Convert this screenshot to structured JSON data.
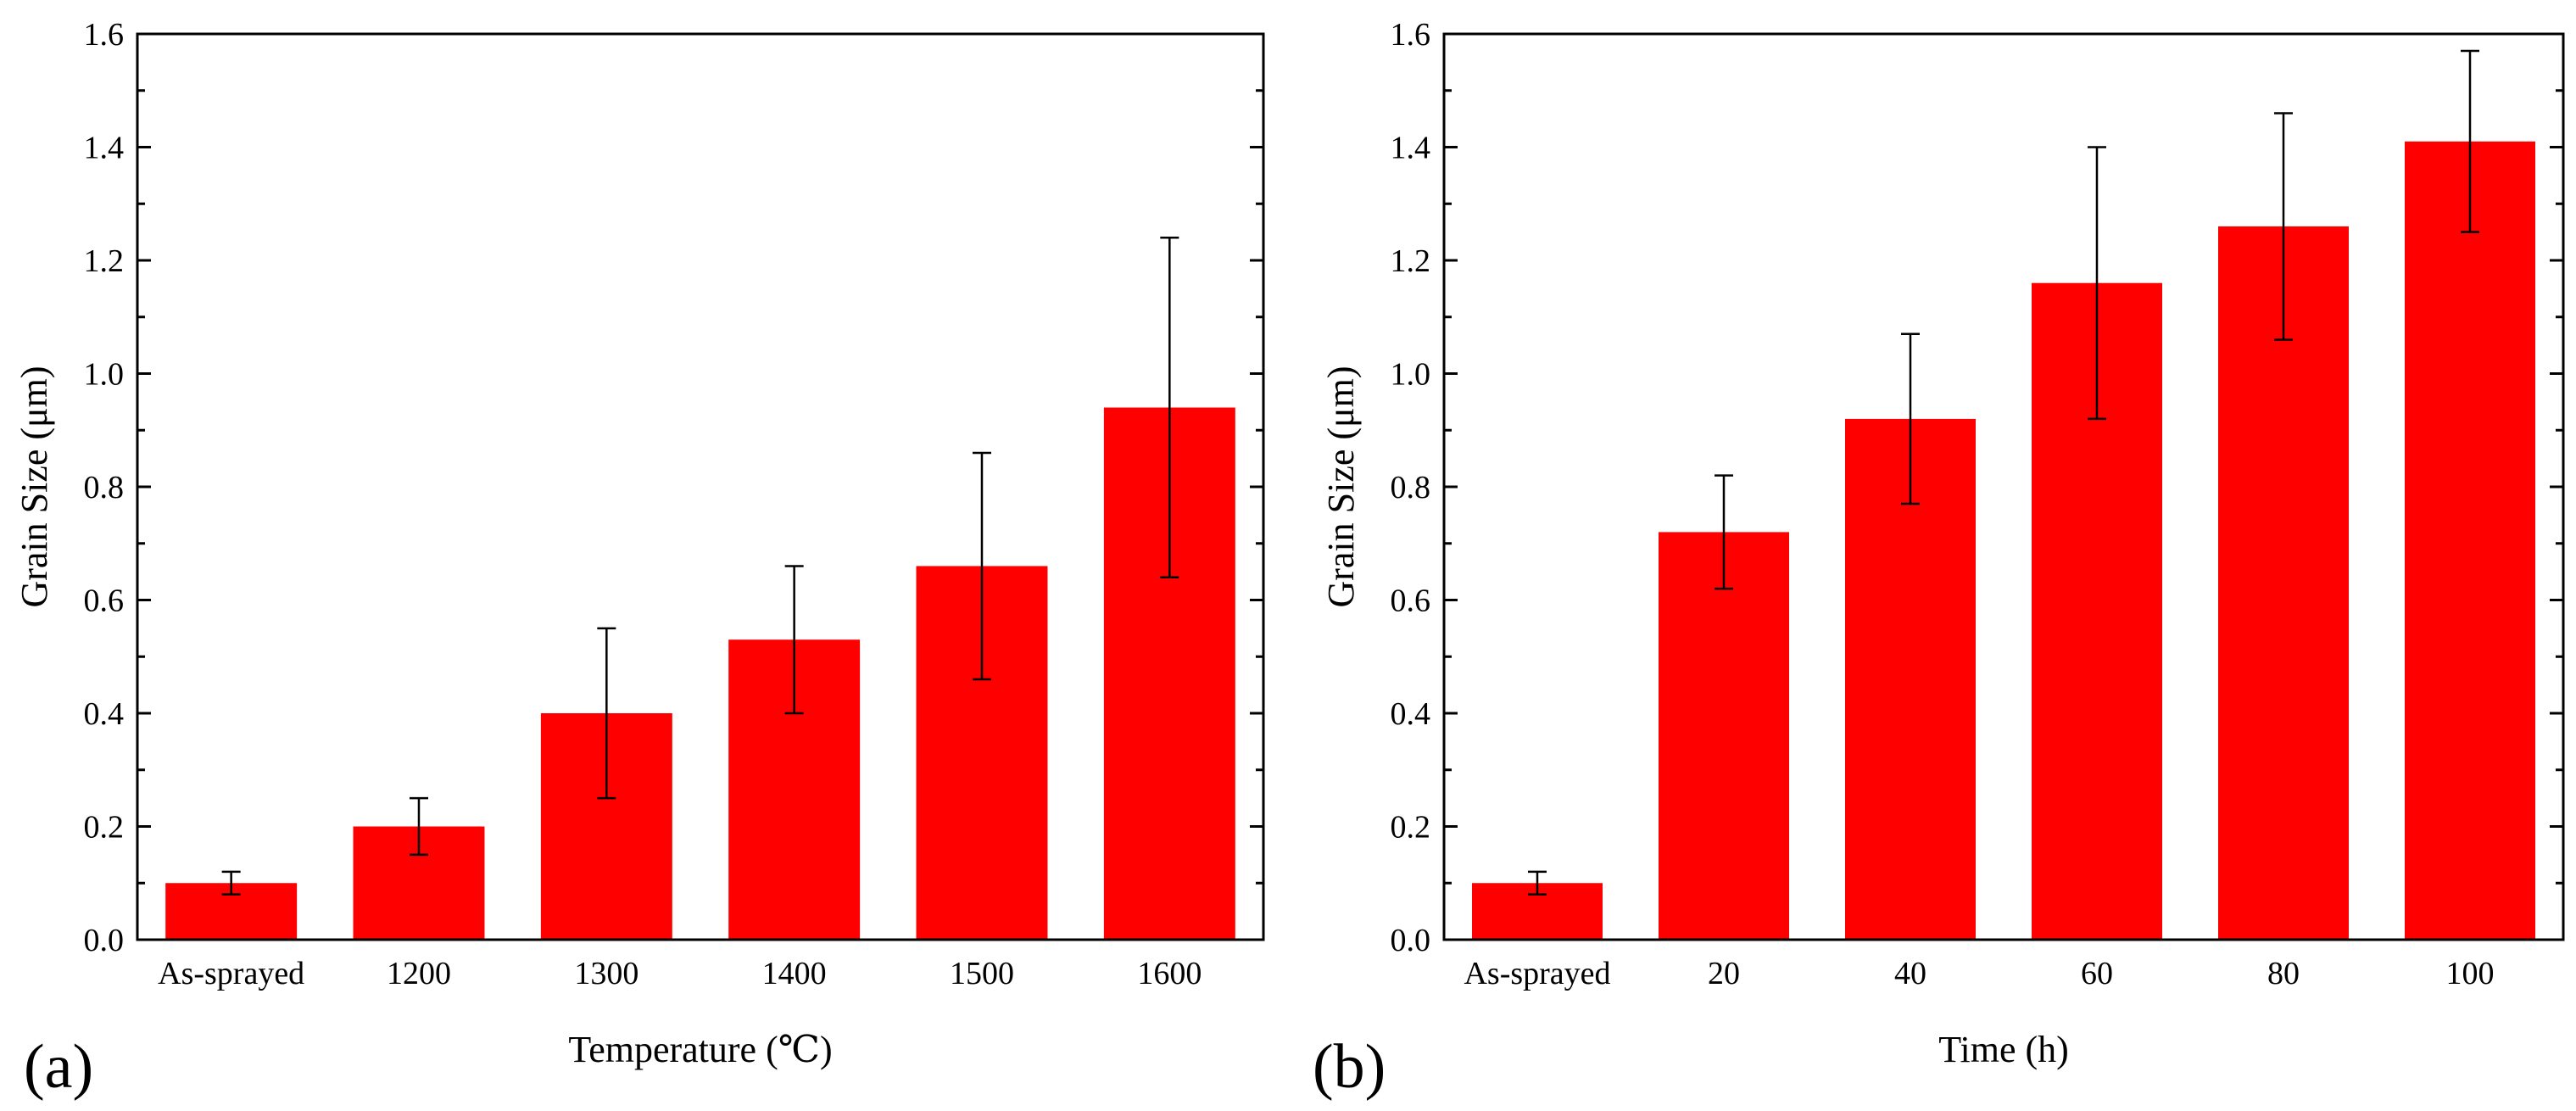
{
  "chart_data": [
    {
      "type": "bar",
      "panel_label": "(a)",
      "xlabel": "Temperature (℃)",
      "ylabel": "Grain Size (μm)",
      "categories": [
        "As-sprayed",
        "1200",
        "1300",
        "1400",
        "1500",
        "1600"
      ],
      "values": [
        0.1,
        0.2,
        0.4,
        0.53,
        0.66,
        0.94
      ],
      "errors_upper": [
        0.12,
        0.25,
        0.55,
        0.66,
        0.86,
        1.24
      ],
      "errors_lower": [
        0.08,
        0.15,
        0.25,
        0.4,
        0.46,
        0.64
      ],
      "ylim": [
        0,
        1.6
      ],
      "yticks": [
        "0.0",
        "0.2",
        "0.4",
        "0.6",
        "0.8",
        "1.0",
        "1.2",
        "1.4",
        "1.6"
      ],
      "bar_color": "#ff0000"
    },
    {
      "type": "bar",
      "panel_label": "(b)",
      "xlabel": "Time (h)",
      "ylabel": "Grain Size (μm)",
      "categories": [
        "As-sprayed",
        "20",
        "40",
        "60",
        "80",
        "100"
      ],
      "values": [
        0.1,
        0.72,
        0.92,
        1.16,
        1.26,
        1.41
      ],
      "errors_upper": [
        0.12,
        0.82,
        1.07,
        1.4,
        1.46,
        1.57
      ],
      "errors_lower": [
        0.08,
        0.62,
        0.77,
        0.92,
        1.06,
        1.25
      ],
      "ylim": [
        0,
        1.6
      ],
      "yticks": [
        "0.0",
        "0.2",
        "0.4",
        "0.6",
        "0.8",
        "1.0",
        "1.2",
        "1.4",
        "1.6"
      ],
      "bar_color": "#ff0000"
    }
  ]
}
